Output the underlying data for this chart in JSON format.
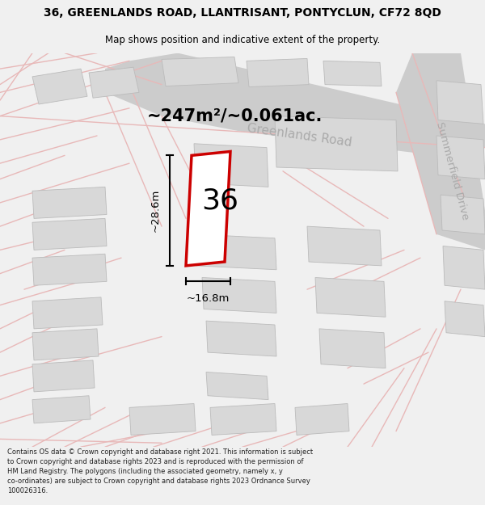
{
  "title_line1": "36, GREENLANDS ROAD, LLANTRISANT, PONTYCLUN, CF72 8QD",
  "title_line2": "Map shows position and indicative extent of the property.",
  "footer_text": "Contains OS data © Crown copyright and database right 2021. This information is subject to Crown copyright and database rights 2023 and is reproduced with the permission of HM Land Registry. The polygons (including the associated geometry, namely x, y co-ordinates) are subject to Crown copyright and database rights 2023 Ordnance Survey 100026316.",
  "area_label": "~247m²/~0.061ac.",
  "number_label": "36",
  "dim_width_label": "~16.8m",
  "dim_height_label": "~28.6m",
  "road_label1": "Greenlands Road",
  "road_label2": "Summerfield Drive",
  "bg_color": "#f0f0f0",
  "map_bg": "#ffffff",
  "road_line_color": "#e8b8b8",
  "road_fill_color": "#f5e8e8",
  "gray_road_color": "#cccccc",
  "gray_road_label_color": "#aaaaaa",
  "building_fill": "#d8d8d8",
  "building_edge": "#bbbbbb",
  "plot_stroke": "#cc0000",
  "plot_fill": "#ffffff",
  "dim_line_color": "#000000",
  "text_color": "#000000",
  "footer_color": "#222222"
}
